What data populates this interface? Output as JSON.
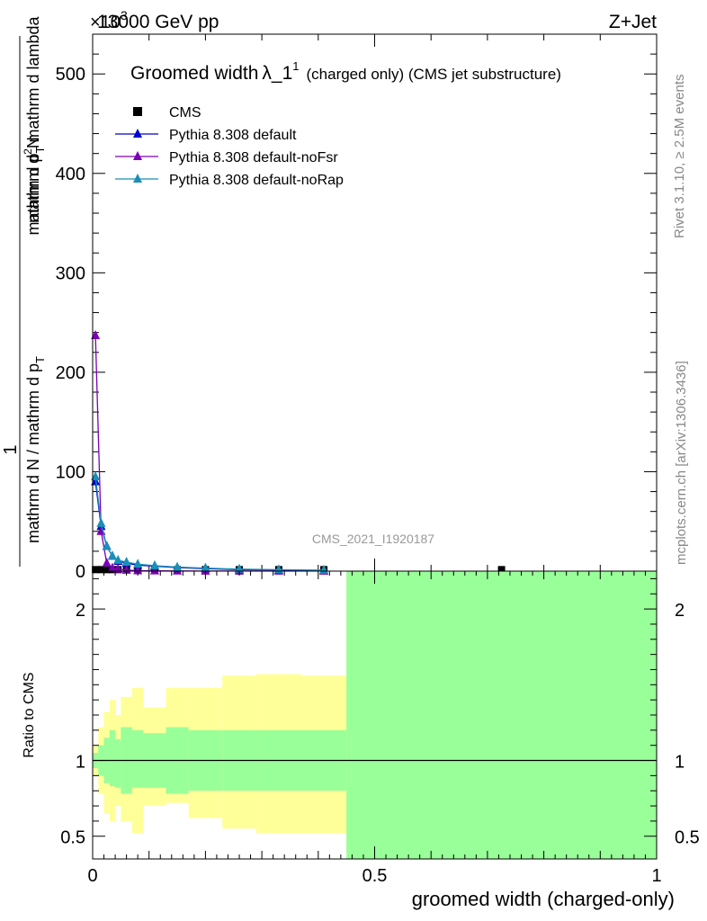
{
  "header": {
    "beam": "13000 GeV pp",
    "process": "Z+Jet",
    "exponent": "×10",
    "exponent_power": "3",
    "watermark": "CMS_2021_I1920187",
    "side_rivet": "Rivet 3.1.10, ≥ 2.5M events",
    "side_site": "mcplots.cern.ch [arXiv:1306.3436]"
  },
  "chart_data": [
    {
      "type": "line",
      "title": "Groomed width",
      "title_symbol": "λ_1",
      "title_superscript": "1",
      "title_note": "(charged only) (CMS jet substructure)",
      "ylabel_num": "1",
      "ylabel_den": "mathrm d N / mathrm d p",
      "ylabel_den_sub": "T",
      "ylabel_num2": "mathrm d",
      "ylabel_num2_sup": "2",
      "ylabel_num2_rest": "N",
      "ylabel_den2": "mathrm d p",
      "ylabel_den2_sub": "T",
      "ylabel_den2_rest": "mathrm d lambda",
      "xlim": [
        0,
        1
      ],
      "ylim": [
        0,
        540
      ],
      "yticks": [
        0,
        100,
        200,
        300,
        400,
        500
      ],
      "ytick_labels": [
        "0",
        "100",
        "200",
        "300",
        "400",
        "500"
      ],
      "legend_position": "top-left",
      "series": [
        {
          "name": "CMS",
          "color": "#000000",
          "marker": "square",
          "x": [
            0.005,
            0.015,
            0.025,
            0.035,
            0.045,
            0.06,
            0.08,
            0.11,
            0.15,
            0.2,
            0.26,
            0.33,
            0.41,
            0.725
          ],
          "values": [
            1.5,
            1.5,
            1.5,
            1.5,
            1.5,
            1.5,
            1.5,
            1.5,
            1.5,
            1.5,
            1.5,
            1.5,
            1.5,
            1.5
          ]
        },
        {
          "name": "Pythia 8.308 default",
          "color": "#0000cc",
          "marker": "triangle",
          "x": [
            0.005,
            0.015,
            0.025,
            0.035,
            0.045,
            0.06,
            0.08,
            0.11,
            0.15,
            0.2,
            0.26,
            0.33,
            0.41
          ],
          "values": [
            90,
            45,
            25,
            15,
            10,
            8,
            6,
            5,
            3.5,
            2.5,
            1.5,
            1,
            0.5
          ]
        },
        {
          "name": "Pythia 8.308 default-noFsr",
          "color": "#7a00b8",
          "marker": "triangle",
          "x": [
            0.005,
            0.015,
            0.025,
            0.035,
            0.045,
            0.06,
            0.08,
            0.11,
            0.15,
            0.2,
            0.26,
            0.33,
            0.41
          ],
          "values": [
            237,
            40,
            8,
            3,
            2,
            1,
            0.5,
            0.3,
            0.2,
            0.1,
            0.1,
            0.1,
            0.1
          ]
        },
        {
          "name": "Pythia 8.308 default-noRap",
          "color": "#1a8fb8",
          "marker": "triangle",
          "x": [
            0.005,
            0.015,
            0.025,
            0.035,
            0.045,
            0.06,
            0.08,
            0.11,
            0.15,
            0.2,
            0.26,
            0.33,
            0.41
          ],
          "values": [
            95,
            48,
            25,
            15,
            11,
            9,
            7,
            5.5,
            4,
            3,
            2,
            1.5,
            1
          ]
        }
      ]
    },
    {
      "type": "area",
      "ylabel": "Ratio to CMS",
      "xlabel": "groomed width (charged-only)",
      "xlim": [
        0,
        1
      ],
      "ylim": [
        0.35,
        2.25
      ],
      "xticks": [
        0,
        0.5,
        1
      ],
      "xtick_labels": [
        "0",
        "0.5",
        "1"
      ],
      "yticks": [
        0.5,
        1,
        2
      ],
      "ytick_labels": [
        "0.5",
        "1",
        "2"
      ],
      "reference_line": 1,
      "bins_edges": [
        0,
        0.01,
        0.02,
        0.03,
        0.04,
        0.05,
        0.07,
        0.09,
        0.13,
        0.17,
        0.23,
        0.29,
        0.37,
        0.45,
        1.0
      ],
      "band_total": {
        "color": "#ffff99",
        "low": [
          0.9,
          0.78,
          0.65,
          0.6,
          0.7,
          0.6,
          0.52,
          0.7,
          0.72,
          0.62,
          0.55,
          0.52,
          0.52,
          0.4
        ],
        "high": [
          1.1,
          1.22,
          1.32,
          1.4,
          1.3,
          1.42,
          1.48,
          1.35,
          1.48,
          1.48,
          1.56,
          1.57,
          1.56,
          2.3
        ]
      },
      "band_stat": {
        "color": "#99ff99",
        "low": [
          0.95,
          0.9,
          0.85,
          0.83,
          0.82,
          0.78,
          0.82,
          0.82,
          0.78,
          0.8,
          0.8,
          0.8,
          0.8,
          0.35
        ],
        "high": [
          1.05,
          1.1,
          1.15,
          1.2,
          1.14,
          1.22,
          1.2,
          1.18,
          1.22,
          1.2,
          1.2,
          1.2,
          1.2,
          2.3
        ]
      }
    }
  ]
}
